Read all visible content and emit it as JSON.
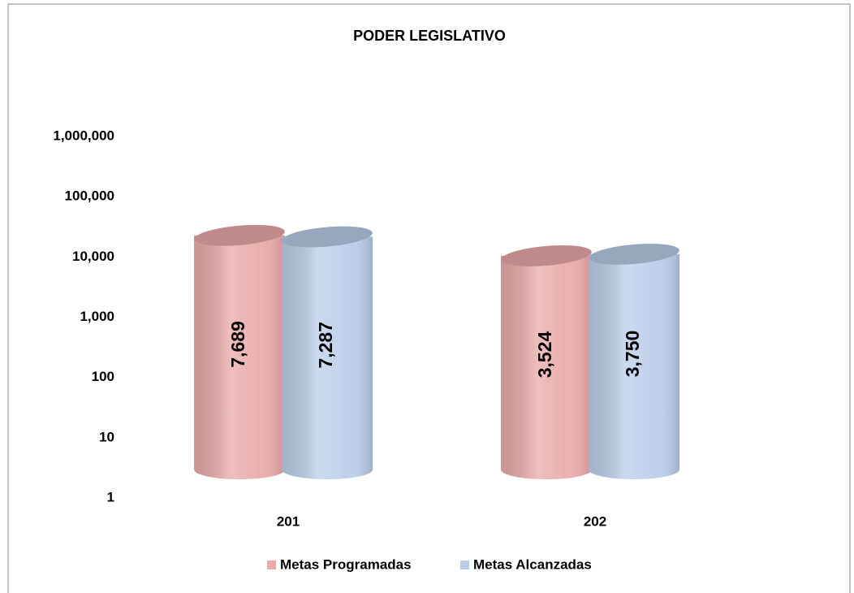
{
  "chart_data": {
    "type": "bar",
    "title": "PODER LEGISLATIVO",
    "categories": [
      "201",
      "202"
    ],
    "series": [
      {
        "name": "Metas Programadas",
        "color": "#e9a9a8",
        "values": [
          7689,
          3524
        ],
        "value_labels": [
          "7,689",
          "3,524"
        ]
      },
      {
        "name": "Metas Alcanzadas",
        "color": "#b9cde8",
        "values": [
          7287,
          3750
        ],
        "value_labels": [
          "7,287",
          "3,750"
        ]
      }
    ],
    "log_scale": true,
    "ylim": [
      1,
      1000000
    ],
    "yticks": [
      1,
      10,
      100,
      {
        "value": 1000,
        "label": "1,000"
      },
      {
        "value": 10000,
        "label": "10,000"
      },
      {
        "value": 100000,
        "label": "100,000"
      },
      {
        "value": 1000000,
        "label": "1,000,000"
      }
    ],
    "grid": false,
    "legend": "bottom"
  }
}
